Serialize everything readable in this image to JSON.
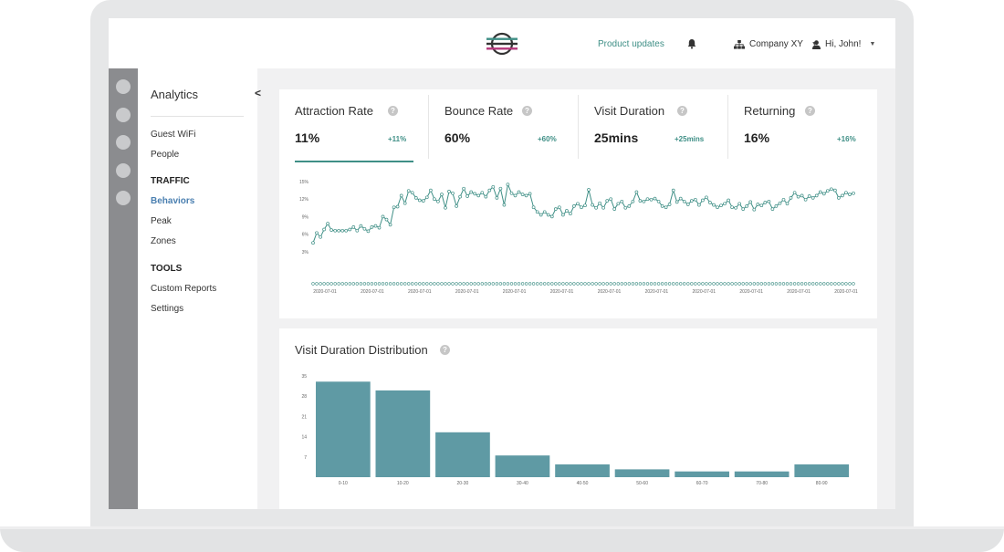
{
  "header": {
    "product_updates": "Product updates",
    "company": "Company XY",
    "user_greeting": "Hi, John!"
  },
  "sidenav": {
    "title": "Analytics",
    "collapse_glyph": "<",
    "items": [
      {
        "label": "Guest WiFi",
        "type": "item"
      },
      {
        "label": "People",
        "type": "item"
      },
      {
        "label": "TRAFFIC",
        "type": "heading"
      },
      {
        "label": "Behaviors",
        "type": "active"
      },
      {
        "label": "Peak",
        "type": "item"
      },
      {
        "label": "Zones",
        "type": "item"
      },
      {
        "label": "TOOLS",
        "type": "heading"
      },
      {
        "label": "Custom Reports",
        "type": "item"
      },
      {
        "label": "Settings",
        "type": "item"
      }
    ]
  },
  "metrics": [
    {
      "label": "Attraction Rate",
      "value": "11%",
      "change": "+11%",
      "active": true
    },
    {
      "label": "Bounce Rate",
      "value": "60%",
      "change": "+60%",
      "active": false
    },
    {
      "label": "Visit Duration",
      "value": "25mins",
      "change": "+25mins",
      "active": false
    },
    {
      "label": "Returning",
      "value": "16%",
      "change": "+16%",
      "active": false
    }
  ],
  "help_glyph": "?",
  "distribution": {
    "title": "Visit Duration Distribution"
  },
  "chart_data": [
    {
      "type": "line",
      "title": "",
      "ylim": [
        0,
        15
      ],
      "yticks": [
        3,
        6,
        9,
        12,
        15
      ],
      "ytick_labels": [
        "3%",
        "6%",
        "9%",
        "12%",
        "15%"
      ],
      "x_tick_labels": [
        "2020-07-01",
        "2020-07-01",
        "2020-07-01",
        "2020-07-01",
        "2020-07-01",
        "2020-07-01",
        "2020-07-01",
        "2020-07-01",
        "2020-07-01",
        "2020-07-01",
        "2020-07-01",
        "2020-07-01"
      ],
      "grid": false,
      "color": "#3f8f86",
      "values": [
        4.5,
        6.2,
        5.5,
        6.8,
        7.8,
        6.7,
        6.6,
        6.6,
        6.6,
        6.6,
        6.8,
        7.2,
        6.6,
        7.4,
        6.9,
        6.5,
        7.2,
        7.4,
        7.1,
        9.0,
        8.5,
        7.6,
        10.6,
        10.7,
        12.6,
        11.3,
        13.4,
        13.1,
        12.2,
        11.8,
        11.7,
        12.3,
        13.5,
        12.0,
        11.6,
        12.8,
        10.5,
        13.3,
        13.0,
        10.8,
        12.4,
        13.8,
        12.5,
        13.2,
        12.9,
        12.6,
        13.1,
        12.4,
        13.5,
        14.1,
        12.2,
        13.8,
        11.0,
        14.5,
        13.0,
        12.6,
        13.2,
        12.8,
        12.6,
        12.9,
        10.6,
        9.8,
        9.3,
        9.8,
        9.3,
        9.0,
        10.3,
        10.6,
        9.3,
        10.0,
        9.5,
        10.8,
        11.2,
        10.6,
        10.9,
        13.6,
        11.0,
        10.5,
        11.3,
        10.5,
        11.7,
        12.0,
        10.3,
        11.2,
        11.6,
        10.5,
        10.8,
        11.6,
        13.2,
        11.7,
        11.6,
        12.0,
        11.9,
        12.1,
        11.6,
        10.8,
        10.6,
        11.1,
        13.5,
        11.5,
        12.1,
        11.6,
        11.1,
        11.7,
        11.9,
        11.0,
        11.8,
        12.3,
        11.4,
        11.0,
        10.6,
        10.9,
        11.2,
        11.8,
        10.6,
        10.5,
        11.2,
        10.3,
        10.8,
        11.5,
        10.2,
        11.1,
        10.9,
        11.4,
        11.6,
        10.3,
        10.8,
        11.3,
        11.9,
        11.2,
        12.2,
        13.1,
        12.4,
        12.6,
        11.9,
        12.5,
        12.2,
        12.6,
        13.2,
        12.9,
        13.4,
        13.7,
        13.5,
        12.2,
        12.6,
        13.1,
        12.8,
        13.0
      ]
    },
    {
      "type": "bar",
      "title": "Visit Duration Distribution",
      "categories": [
        "0-10",
        "10-20",
        "20-30",
        "30-40",
        "40-50",
        "50-60",
        "60-70",
        "70-80",
        "80-90"
      ],
      "values": [
        33,
        30,
        15.5,
        7.5,
        4.4,
        2.7,
        2.0,
        2.0,
        4.4
      ],
      "ylim": [
        0,
        35
      ],
      "yticks": [
        7,
        14,
        21,
        28,
        35
      ],
      "color": "#5f9aa4",
      "grid": false
    }
  ]
}
